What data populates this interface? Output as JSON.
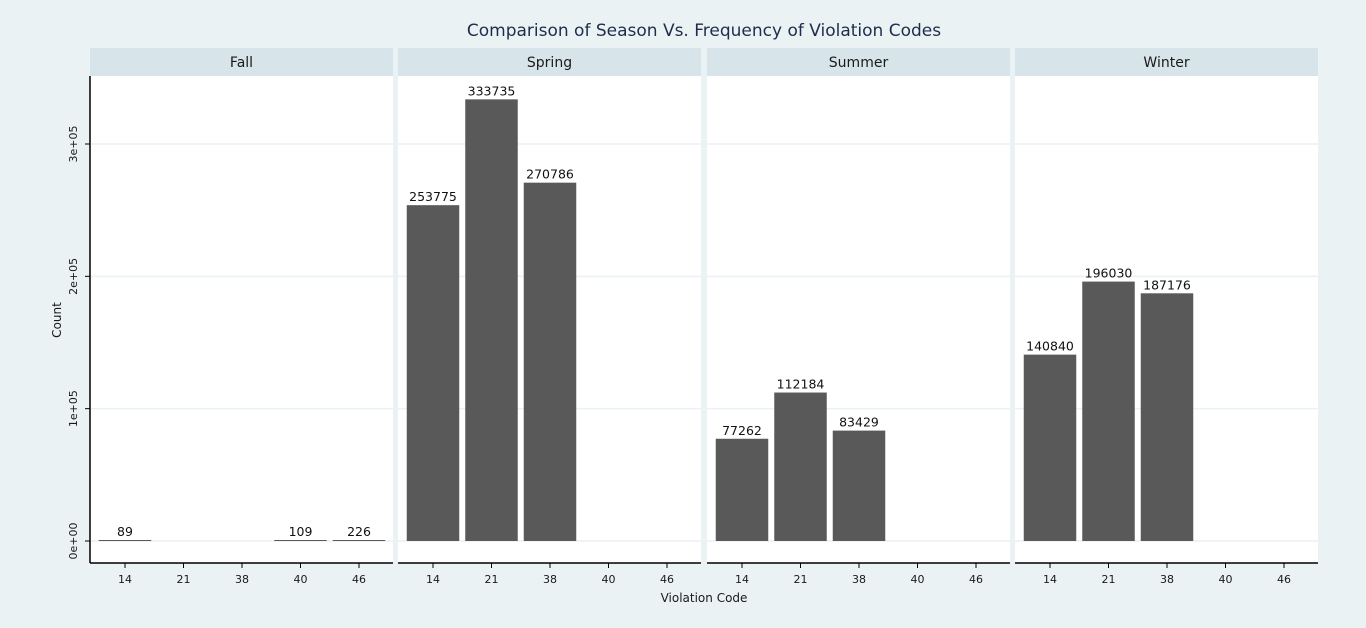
{
  "chart_data": {
    "type": "bar",
    "title": "Comparison of Season Vs. Frequency of Violation Codes",
    "xlabel": "Violation Code",
    "ylabel": "Count",
    "categories": [
      "14",
      "21",
      "38",
      "40",
      "46"
    ],
    "ylim": [
      0,
      350000
    ],
    "yticks": [
      0,
      100000,
      200000,
      300000
    ],
    "ytick_labels": [
      "0e+00",
      "1e+05",
      "2e+05",
      "3e+05"
    ],
    "grid": true,
    "bar_color": "#595959",
    "facets": [
      {
        "name": "Fall",
        "values": [
          89,
          null,
          null,
          109,
          226
        ]
      },
      {
        "name": "Spring",
        "values": [
          253775,
          333735,
          270786,
          null,
          null
        ]
      },
      {
        "name": "Summer",
        "values": [
          77262,
          112184,
          83429,
          null,
          null
        ]
      },
      {
        "name": "Winter",
        "values": [
          140840,
          196030,
          187176,
          null,
          null
        ]
      }
    ]
  },
  "colors": {
    "background": "#eaf2f3",
    "panel": "#ffffff",
    "strip": "#d7e4ea",
    "gridline": "#eaf2f3",
    "axis": "#000000",
    "bar": "#595959"
  }
}
